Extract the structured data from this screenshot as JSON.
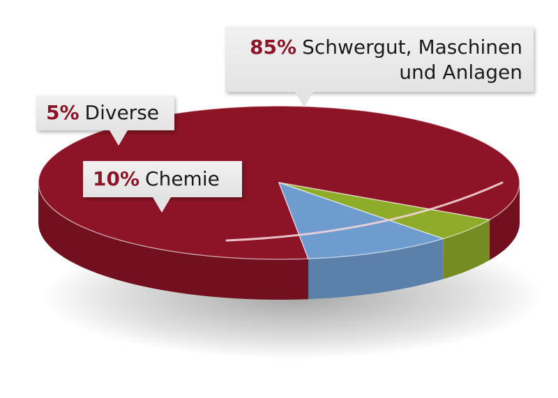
{
  "chart_data": {
    "type": "pie",
    "style": "3d",
    "slices": [
      {
        "label": "Schwergut, Maschinen und Anlagen",
        "label_lines": [
          "Schwergut, Maschinen",
          "und Anlagen"
        ],
        "value": 85,
        "value_label": "85%",
        "color": "#8c1426"
      },
      {
        "label": "Diverse",
        "label_lines": [
          "Diverse"
        ],
        "value": 5,
        "value_label": "5%",
        "color": "#8eab2a"
      },
      {
        "label": "Chemie",
        "label_lines": [
          "Chemie"
        ],
        "value": 10,
        "value_label": "10%",
        "color": "#6f9ccf"
      }
    ],
    "legend": "callouts"
  }
}
